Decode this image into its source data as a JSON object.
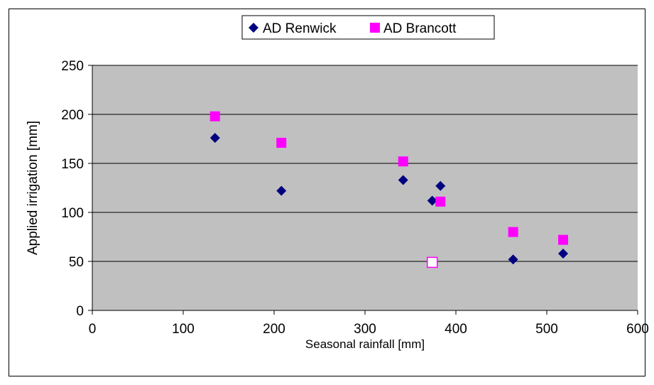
{
  "colors": {
    "plot_background": "#c0c0c0",
    "renwick": "#000080",
    "brancott": "#ff00ff",
    "outlier_fill": "#ffffff",
    "gridline": "#000000"
  },
  "chart_data": {
    "type": "scatter",
    "title": "",
    "xlabel": "Seasonal rainfall [mm]",
    "ylabel": "Applied irrigation [mm]",
    "xlim": [
      0,
      600
    ],
    "ylim": [
      0,
      250
    ],
    "xticks": [
      0,
      100,
      200,
      300,
      400,
      500,
      600
    ],
    "yticks": [
      0,
      50,
      100,
      150,
      200,
      250
    ],
    "grid": "horizontal major gridlines",
    "legend_position": "top-center",
    "series": [
      {
        "name": "AD Renwick",
        "marker": "diamond",
        "points": [
          {
            "x": 135,
            "y": 176
          },
          {
            "x": 208,
            "y": 122
          },
          {
            "x": 342,
            "y": 133
          },
          {
            "x": 374,
            "y": 112
          },
          {
            "x": 383,
            "y": 127
          },
          {
            "x": 463,
            "y": 52
          },
          {
            "x": 518,
            "y": 58
          }
        ]
      },
      {
        "name": "AD Brancott",
        "marker": "square",
        "points": [
          {
            "x": 135,
            "y": 198
          },
          {
            "x": 208,
            "y": 171
          },
          {
            "x": 342,
            "y": 152
          },
          {
            "x": 383,
            "y": 111
          },
          {
            "x": 463,
            "y": 80
          },
          {
            "x": 518,
            "y": 72
          },
          {
            "x": 374,
            "y": 49,
            "hollow": true
          }
        ]
      }
    ]
  }
}
